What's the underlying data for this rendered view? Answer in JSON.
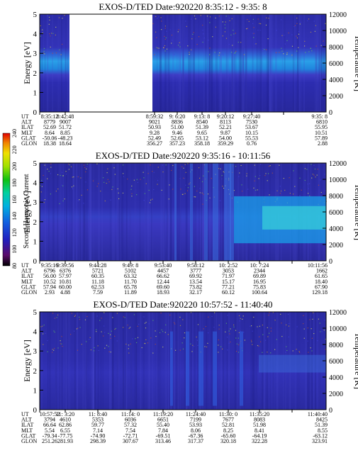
{
  "chart_data": [
    {
      "type": "heatmap",
      "title": "EXOS-D/TED   Date:920220  8:35:12 - 9:35: 8",
      "ylabel": "Energy [eV]",
      "y2label": "Temperature [K]",
      "ylim": [
        0,
        5
      ],
      "y2lim": [
        0,
        12000
      ],
      "yticks": [
        "0",
        "1",
        "2",
        "3",
        "4",
        "5"
      ],
      "y2ticks": [
        "0",
        "2000",
        "4000",
        "6000",
        "8000",
        "10000",
        "12000"
      ],
      "data_gap": [
        "8:42:48",
        "8:59:32"
      ],
      "orbit_labels": [
        "UT",
        "ALT",
        "ILAT",
        "MLT",
        "GLAT",
        "GLON"
      ],
      "columns": [
        [
          "8:35:12",
          "8779",
          "52.69",
          "8.64",
          "-50.06",
          "18.38"
        ],
        [
          "8:42:48",
          "9007",
          "51.72",
          "8.85",
          "-48.23",
          "18.64"
        ],
        [
          "8:59:32",
          "9021",
          "50.93",
          "9.28",
          "52.49",
          "356.27"
        ],
        [
          "9: 6:20",
          "8836",
          "51.00",
          "9.46",
          "52.65",
          "357.23"
        ],
        [
          "9:13: 8",
          "8540",
          "51.39",
          "9.65",
          "53.12",
          "358.18"
        ],
        [
          "9:20:12",
          "8113",
          "52.21",
          "9.87",
          "54.00",
          "359.29"
        ],
        [
          "9:27:40",
          "7530",
          "53.67",
          "10.15",
          "55.53",
          "0.76"
        ],
        [
          "9:35: 8",
          "6810",
          "55.95",
          "10.51",
          "57.89",
          "2.88"
        ]
      ]
    },
    {
      "type": "heatmap",
      "title": "EXOS-D/TED   Date:920220  9:35:16 - 10:11:56",
      "ylabel": "Energy [eV]",
      "y2label": "Temperature [K]",
      "ylim": [
        0,
        5
      ],
      "y2lim": [
        0,
        12000
      ],
      "yticks": [
        "0",
        "1",
        "2",
        "3",
        "4",
        "5"
      ],
      "y2ticks": [
        "0",
        "2000",
        "4000",
        "6000",
        "8000",
        "10000",
        "12000"
      ],
      "colorbar": {
        "label": "Second Harmonic Current",
        "range": [
          80,
          240
        ],
        "ticks": [
          "80",
          "100",
          "120",
          "140",
          "160",
          "180",
          "200",
          "220",
          "240"
        ]
      },
      "orbit_labels": [
        "UT",
        "ALT",
        "ILAT",
        "MLT",
        "GLAT",
        "GLON"
      ],
      "columns": [
        [
          "9:35:16",
          "6796",
          "56.00",
          "10.52",
          "57.94",
          "2.93"
        ],
        [
          "9:39:56",
          "6376",
          "57.97",
          "10.81",
          "60.00",
          "4.88"
        ],
        [
          "9:44:28",
          "5721",
          "60.35",
          "11.18",
          "62.53",
          "7.59"
        ],
        [
          "9:49: 8",
          "5102",
          "63.32",
          "11.70",
          "65.78",
          "11.89"
        ],
        [
          "9:53:40",
          "4457",
          "66.62",
          "12.44",
          "69.60",
          "18.93"
        ],
        [
          "9:58:12",
          "3777",
          "69.92",
          "13.54",
          "73.82",
          "32.17"
        ],
        [
          "10: 2:52",
          "3053",
          "71.97",
          "15.17",
          "77.21",
          "60.12"
        ],
        [
          "10: 7:24",
          "2344",
          "69.89",
          "16.95",
          "75.83",
          "100.64"
        ],
        [
          "10:11:56",
          "1662",
          "61.65",
          "18.40",
          "67.90",
          "129.18"
        ]
      ]
    },
    {
      "type": "heatmap",
      "title": "EXOS-D/TED   Date:920220  10:57:52 - 11:40:40",
      "ylabel": "Energy [eV]",
      "y2label": "Temperature [K]",
      "ylim": [
        0,
        5
      ],
      "y2lim": [
        0,
        12000
      ],
      "yticks": [
        "0",
        "1",
        "2",
        "3",
        "4",
        "5"
      ],
      "y2ticks": [
        "0",
        "2000",
        "4000",
        "6000",
        "8000",
        "10000",
        "12000"
      ],
      "orbit_labels": [
        "UT",
        "ALT",
        "ILAT",
        "MLT",
        "GLAT",
        "GLON"
      ],
      "columns": [
        [
          "10:57:52",
          "3794",
          "66.64",
          "5.54",
          "-79.34",
          "251.26"
        ],
        [
          "11: 3:20",
          "4610",
          "62.86",
          "6.55",
          "-77.75",
          "281.93"
        ],
        [
          "11: 8:40",
          "5353",
          "59.77",
          "7.14",
          "-74.90",
          "298.39"
        ],
        [
          "11:14: 0",
          "6036",
          "57.32",
          "7.54",
          "-72.71",
          "307.67"
        ],
        [
          "11:19:20",
          "6651",
          "55.40",
          "7.84",
          "-69.51",
          "313.46"
        ],
        [
          "11:24:40",
          "7199",
          "53.93",
          "8.06",
          "-67.36",
          "317.37"
        ],
        [
          "11:30: 0",
          "7677",
          "52.81",
          "8.25",
          "-65.60",
          "320.18"
        ],
        [
          "11:35:20",
          "8083",
          "51.98",
          "8.41",
          "-64.19",
          "322.28"
        ],
        [
          "11:40:40",
          "8425",
          "51.39",
          "8.55",
          "-63.12",
          "323.91"
        ]
      ]
    }
  ]
}
